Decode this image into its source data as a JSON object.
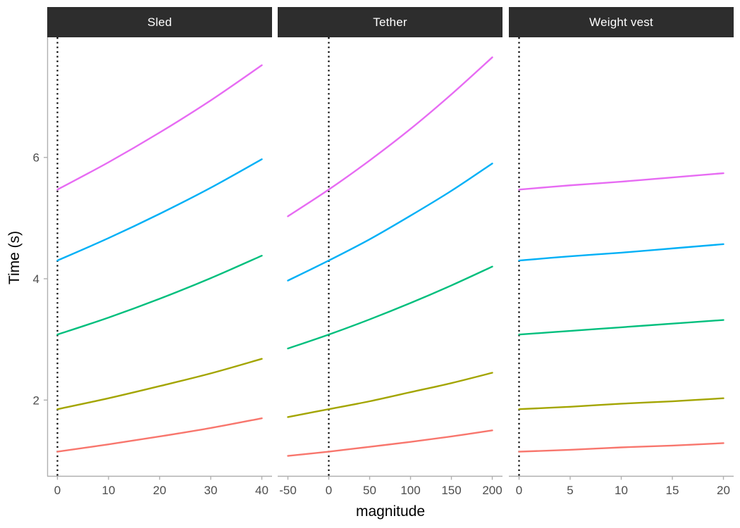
{
  "chart": {
    "y_title": "Time (s)",
    "x_title": "magnitude",
    "strip_bg": "#2d2d2d",
    "strip_text_color": "#ffffff",
    "axis_line_color": "#b0b0b0",
    "tick_label_color": "#4d4d4d",
    "title_color": "#000000"
  },
  "chart_data": {
    "type": "line",
    "title": "",
    "xlabel": "magnitude",
    "ylabel": "Time (s)",
    "legend": "none",
    "grid": "off",
    "y_ticks": [
      2,
      4,
      6
    ],
    "y_range": [
      0.75,
      7.98
    ],
    "reference_line": {
      "x": 0,
      "style": "dotted",
      "color": "#000000"
    },
    "facets": [
      {
        "label": "Sled",
        "x_ticks": [
          0,
          10,
          20,
          30,
          40
        ],
        "x_range": [
          -2,
          42
        ],
        "x": [
          0,
          10,
          20,
          30,
          40
        ],
        "series": [
          {
            "name": "salmon",
            "color": "#F8766D",
            "values": [
              1.15,
              1.27,
              1.4,
              1.54,
              1.7
            ]
          },
          {
            "name": "olive",
            "color": "#A3A500",
            "values": [
              1.85,
              2.03,
              2.23,
              2.44,
              2.68
            ]
          },
          {
            "name": "green",
            "color": "#00BF7D",
            "values": [
              3.08,
              3.36,
              3.67,
              4.01,
              4.38
            ]
          },
          {
            "name": "blue",
            "color": "#00B0F6",
            "values": [
              4.3,
              4.67,
              5.07,
              5.5,
              5.97
            ]
          },
          {
            "name": "magenta",
            "color": "#E76BF3",
            "values": [
              5.47,
              5.92,
              6.41,
              6.94,
              7.52
            ]
          }
        ]
      },
      {
        "label": "Tether",
        "x_ticks": [
          -50,
          0,
          50,
          100,
          150,
          200
        ],
        "x_range": [
          -62.5,
          212.5
        ],
        "x": [
          -50,
          0,
          50,
          100,
          150,
          200
        ],
        "series": [
          {
            "name": "salmon",
            "color": "#F8766D",
            "values": [
              1.08,
              1.15,
              1.23,
              1.31,
              1.4,
              1.5
            ]
          },
          {
            "name": "olive",
            "color": "#A3A500",
            "values": [
              1.72,
              1.85,
              1.98,
              2.13,
              2.28,
              2.45
            ]
          },
          {
            "name": "green",
            "color": "#00BF7D",
            "values": [
              2.85,
              3.08,
              3.33,
              3.6,
              3.89,
              4.2
            ]
          },
          {
            "name": "blue",
            "color": "#00B0F6",
            "values": [
              3.97,
              4.3,
              4.65,
              5.04,
              5.45,
              5.9
            ]
          },
          {
            "name": "magenta",
            "color": "#E76BF3",
            "values": [
              5.03,
              5.47,
              5.95,
              6.47,
              7.04,
              7.65
            ]
          }
        ]
      },
      {
        "label": "Weight vest",
        "x_ticks": [
          0,
          5,
          10,
          15,
          20
        ],
        "x_range": [
          -1,
          21
        ],
        "x": [
          0,
          5,
          10,
          15,
          20
        ],
        "series": [
          {
            "name": "salmon",
            "color": "#F8766D",
            "values": [
              1.15,
              1.18,
              1.22,
              1.25,
              1.29
            ]
          },
          {
            "name": "olive",
            "color": "#A3A500",
            "values": [
              1.85,
              1.89,
              1.94,
              1.98,
              2.03
            ]
          },
          {
            "name": "green",
            "color": "#00BF7D",
            "values": [
              3.08,
              3.14,
              3.2,
              3.26,
              3.32
            ]
          },
          {
            "name": "blue",
            "color": "#00B0F6",
            "values": [
              4.3,
              4.37,
              4.43,
              4.5,
              4.57
            ]
          },
          {
            "name": "magenta",
            "color": "#E76BF3",
            "values": [
              5.47,
              5.54,
              5.6,
              5.67,
              5.74
            ]
          }
        ]
      }
    ]
  }
}
